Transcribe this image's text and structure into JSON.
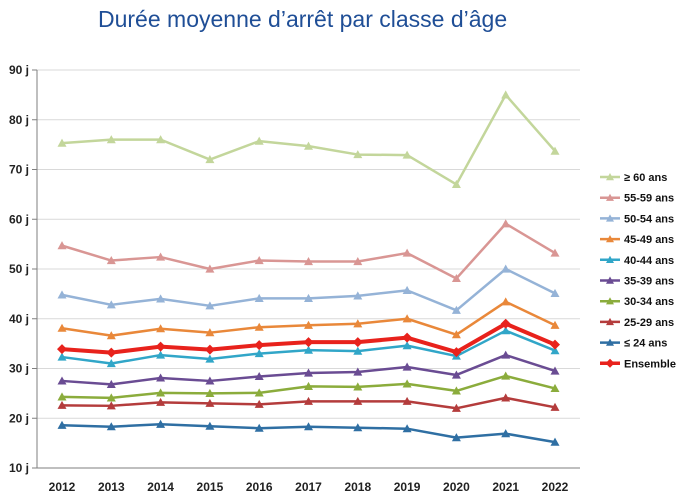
{
  "chart_data": {
    "type": "line",
    "title": "Durée moyenne d’arrêt par classe d’âge",
    "xlabel": "",
    "ylabel": "",
    "ylim": [
      10,
      90
    ],
    "yticks": [
      "10 j",
      "20 j",
      "30 j",
      "40 j",
      "50 j",
      "60 j",
      "70 j",
      "80 j",
      "90 j"
    ],
    "categories": [
      "2012",
      "2013",
      "2014",
      "2015",
      "2016",
      "2017",
      "2018",
      "2019",
      "2020",
      "2021",
      "2022"
    ],
    "grid": "horizontal",
    "legend_position": "right",
    "series": [
      {
        "name": "≥ 60 ans",
        "color": "#c3d69b",
        "marker": "triangle",
        "values": [
          75.3,
          76.0,
          76.0,
          72.0,
          75.7,
          74.7,
          73.0,
          72.9,
          67.0,
          85.0,
          73.7
        ]
      },
      {
        "name": "55-59 ans",
        "color": "#d99694",
        "marker": "triangle",
        "values": [
          54.7,
          51.7,
          52.4,
          50.0,
          51.7,
          51.5,
          51.5,
          53.2,
          48.1,
          59.1,
          53.2
        ]
      },
      {
        "name": "50-54 ans",
        "color": "#95b3d7",
        "marker": "triangle",
        "values": [
          44.8,
          42.8,
          44.0,
          42.6,
          44.1,
          44.1,
          44.6,
          45.7,
          41.7,
          50.0,
          45.1
        ]
      },
      {
        "name": "45-49 ans",
        "color": "#e9883a",
        "marker": "triangle",
        "values": [
          38.1,
          36.6,
          38.0,
          37.2,
          38.3,
          38.7,
          39.0,
          40.0,
          36.8,
          43.4,
          38.7
        ]
      },
      {
        "name": "40-44 ans",
        "color": "#31a6c8",
        "marker": "triangle",
        "values": [
          32.3,
          31.0,
          32.7,
          31.9,
          33.0,
          33.7,
          33.5,
          34.6,
          32.5,
          37.6,
          33.6
        ]
      },
      {
        "name": "35-39 ans",
        "color": "#6a4c93",
        "marker": "triangle",
        "values": [
          27.5,
          26.8,
          28.1,
          27.5,
          28.4,
          29.1,
          29.3,
          30.3,
          28.7,
          32.7,
          29.5
        ]
      },
      {
        "name": "30-34 ans",
        "color": "#8bac3c",
        "marker": "triangle",
        "values": [
          24.3,
          24.1,
          25.1,
          25.0,
          25.1,
          26.4,
          26.3,
          26.9,
          25.5,
          28.5,
          26.0
        ]
      },
      {
        "name": "25-29 ans",
        "color": "#b43c3c",
        "marker": "triangle",
        "values": [
          22.6,
          22.5,
          23.2,
          23.0,
          22.8,
          23.4,
          23.4,
          23.4,
          22.0,
          24.1,
          22.2
        ]
      },
      {
        "name": "≤ 24 ans",
        "color": "#2f6fa3",
        "marker": "triangle",
        "values": [
          18.6,
          18.3,
          18.8,
          18.4,
          18.0,
          18.3,
          18.1,
          17.9,
          16.1,
          16.9,
          15.2
        ]
      },
      {
        "name": "Ensemble",
        "color": "#e8221c",
        "marker": "diamond",
        "bold": true,
        "values": [
          33.9,
          33.2,
          34.4,
          33.8,
          34.7,
          35.3,
          35.3,
          36.2,
          33.3,
          39.0,
          34.8
        ]
      }
    ]
  }
}
